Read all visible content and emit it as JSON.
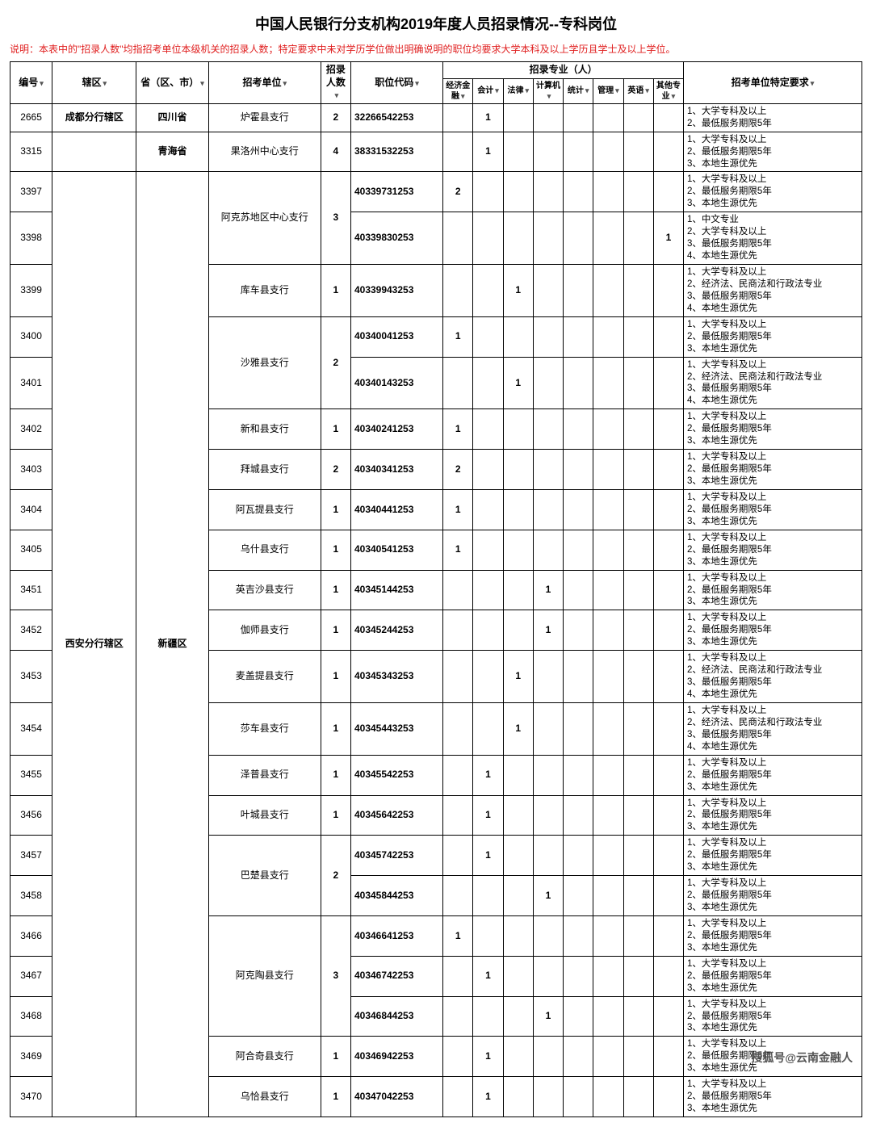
{
  "title": "中国人民银行分支机构2019年度人员招录情况--专科岗位",
  "note": "说明：本表中的\"招录人数\"均指招考单位本级机关的招录人数；特定要求中未对学历学位做出明确说明的职位均要求大学本科及以上学历且学士及以上学位。",
  "watermark": "搜狐号@云南金融人",
  "headers": {
    "id": "编号",
    "area": "辖区",
    "prov": "省（区、市）",
    "unit": "招考单位",
    "cnt": "招录人数",
    "code": "职位代码",
    "major_group": "招录专业（人）",
    "req": "招考单位特定要求",
    "majors": [
      "经济金融",
      "会计",
      "法律",
      "计算机",
      "统计",
      "管理",
      "英语",
      "其他专业"
    ]
  },
  "req_common3": "1、大学专科及以上\n2、最低服务期限5年\n3、本地生源优先",
  "req_common2": "1、大学专科及以上\n2、最低服务期限5年",
  "req_law4": "1、大学专科及以上\n2、经济法、民商法和行政法专业\n3、最低服务期限5年\n4、本地生源优先",
  "req_cn4": "1、中文专业\n2、大学专科及以上\n3、最低服务期限5年\n4、本地生源优先",
  "rows": [
    {
      "id": "2665",
      "area": "成都分行辖区",
      "prov": "四川省",
      "unit": "炉霍县支行",
      "cnt": "2",
      "code": "32266542253",
      "m": {
        "1": "1"
      },
      "req": "req_common2"
    },
    {
      "id": "3315",
      "area": "",
      "prov": "青海省",
      "unit": "果洛州中心支行",
      "cnt": "4",
      "code": "38331532253",
      "m": {
        "1": "1"
      },
      "req": "req_common3"
    },
    {
      "id": "3397",
      "code": "40339731253",
      "m": {
        "0": "2"
      },
      "req": "req_common3"
    },
    {
      "id": "3398",
      "code": "40339830253",
      "m": {
        "7": "1"
      },
      "req": "req_cn4"
    },
    {
      "id": "3399",
      "unit": "库车县支行",
      "cnt": "1",
      "code": "40339943253",
      "m": {
        "2": "1"
      },
      "req": "req_law4"
    },
    {
      "id": "3400",
      "code": "40340041253",
      "m": {
        "0": "1"
      },
      "req": "req_common3"
    },
    {
      "id": "3401",
      "code": "40340143253",
      "m": {
        "2": "1"
      },
      "req": "req_law4"
    },
    {
      "id": "3402",
      "unit": "新和县支行",
      "cnt": "1",
      "code": "40340241253",
      "m": {
        "0": "1"
      },
      "req": "req_common3"
    },
    {
      "id": "3403",
      "unit": "拜城县支行",
      "cnt": "2",
      "code": "40340341253",
      "m": {
        "0": "2"
      },
      "req": "req_common3"
    },
    {
      "id": "3404",
      "unit": "阿瓦提县支行",
      "cnt": "1",
      "code": "40340441253",
      "m": {
        "0": "1"
      },
      "req": "req_common3"
    },
    {
      "id": "3405",
      "unit": "乌什县支行",
      "cnt": "1",
      "code": "40340541253",
      "m": {
        "0": "1"
      },
      "req": "req_common3"
    },
    {
      "id": "3451",
      "unit": "英吉沙县支行",
      "cnt": "1",
      "code": "40345144253",
      "m": {
        "3": "1"
      },
      "req": "req_common3"
    },
    {
      "id": "3452",
      "unit": "伽师县支行",
      "cnt": "1",
      "code": "40345244253",
      "m": {
        "3": "1"
      },
      "req": "req_common3"
    },
    {
      "id": "3453",
      "unit": "麦盖提县支行",
      "cnt": "1",
      "code": "40345343253",
      "m": {
        "2": "1"
      },
      "req": "req_law4"
    },
    {
      "id": "3454",
      "unit": "莎车县支行",
      "cnt": "1",
      "code": "40345443253",
      "m": {
        "2": "1"
      },
      "req": "req_law4"
    },
    {
      "id": "3455",
      "unit": "泽普县支行",
      "cnt": "1",
      "code": "40345542253",
      "m": {
        "1": "1"
      },
      "req": "req_common3"
    },
    {
      "id": "3456",
      "unit": "叶城县支行",
      "cnt": "1",
      "code": "40345642253",
      "m": {
        "1": "1"
      },
      "req": "req_common3"
    },
    {
      "id": "3457",
      "code": "40345742253",
      "m": {
        "1": "1"
      },
      "req": "req_common3"
    },
    {
      "id": "3458",
      "code": "40345844253",
      "m": {
        "3": "1"
      },
      "req": "req_common3"
    },
    {
      "id": "3466",
      "code": "40346641253",
      "m": {
        "0": "1"
      },
      "req": "req_common3"
    },
    {
      "id": "3467",
      "code": "40346742253",
      "m": {
        "1": "1"
      },
      "req": "req_common3"
    },
    {
      "id": "3468",
      "code": "40346844253",
      "m": {
        "3": "1"
      },
      "req": "req_common3"
    },
    {
      "id": "3469",
      "unit": "阿合奇县支行",
      "cnt": "1",
      "code": "40346942253",
      "m": {
        "1": "1"
      },
      "req": "req_common3"
    },
    {
      "id": "3470",
      "unit": "乌恰县支行",
      "cnt": "1",
      "code": "40347042253",
      "m": {
        "1": "1"
      },
      "req": "req_common3"
    }
  ],
  "merged_units": {
    "阿克苏地区中心支行": {
      "start": 2,
      "span": 2,
      "cnt": "3"
    },
    "沙雅县支行": {
      "start": 5,
      "span": 2,
      "cnt": "2"
    },
    "巴楚县支行": {
      "start": 17,
      "span": 2,
      "cnt": "2"
    },
    "阿克陶县支行": {
      "start": 19,
      "span": 3,
      "cnt": "3"
    }
  },
  "area_xian": {
    "label": "西安分行辖区",
    "start": 2,
    "span": 22
  },
  "prov_xj": {
    "label": "新疆区",
    "start": 2,
    "span": 22
  }
}
